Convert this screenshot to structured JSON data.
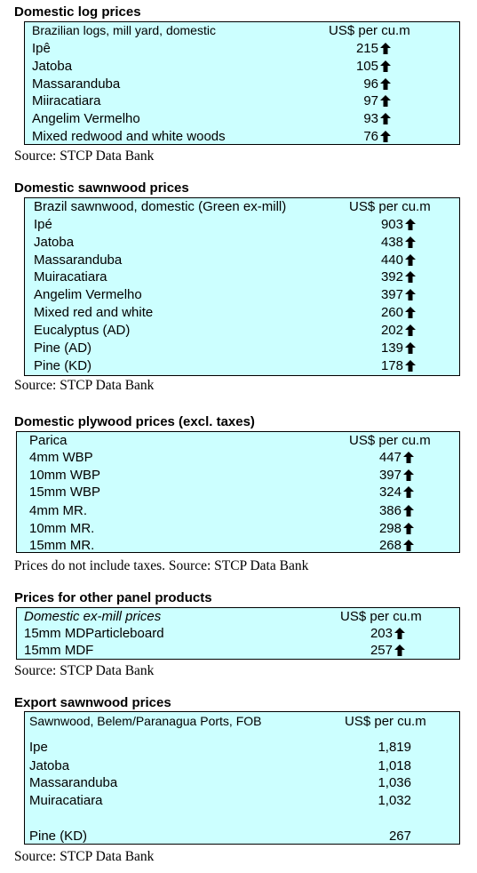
{
  "sections": [
    {
      "title": "Domestic log prices",
      "header": [
        "Brazilian logs, mill yard, domestic",
        "US$ per cu.m"
      ],
      "rows": [
        [
          "Ipê",
          "215"
        ],
        [
          "Jatoba",
          "105"
        ],
        [
          "Massaranduba",
          "96"
        ],
        [
          "Miiracatiara",
          "97"
        ],
        [
          "Angelim Vermelho",
          "93"
        ],
        [
          "Mixed redwood and white woods",
          "76"
        ]
      ],
      "source": "Source: STCP Data Bank"
    },
    {
      "title": "Domestic sawnwood prices",
      "header": [
        "Brazil sawnwood, domestic (Green ex-mill)",
        "US$ per cu.m"
      ],
      "rows": [
        [
          "Ipé",
          "903"
        ],
        [
          "Jatoba",
          "438"
        ],
        [
          "Massaranduba",
          "440"
        ],
        [
          "Muiracatiara",
          "392"
        ],
        [
          "Angelim Vermelho",
          "397"
        ],
        [
          "Mixed red and white",
          "260"
        ],
        [
          "Eucalyptus (AD)",
          "202"
        ],
        [
          "Pine (AD)",
          "139"
        ],
        [
          "Pine (KD)",
          "178"
        ]
      ],
      "source": "Source: STCP Data Bank"
    },
    {
      "title": "Domestic plywood prices (excl. taxes)",
      "header": [
        "Parica",
        "US$ per cu.m"
      ],
      "rows": [
        [
          "4mm WBP",
          "447"
        ],
        [
          "10mm WBP",
          "397"
        ],
        [
          "15mm WBP",
          "324"
        ],
        [
          "4mm MR.",
          "386"
        ],
        [
          "10mm MR.",
          "298"
        ],
        [
          "15mm MR.",
          "268"
        ]
      ],
      "source": "Prices do not include taxes. Source: STCP Data Bank"
    },
    {
      "title": "Prices for other panel products",
      "header": [
        "Domestic ex-mill prices",
        "US$ per cu.m"
      ],
      "rows": [
        [
          "15mm MDParticleboard",
          "203"
        ],
        [
          "15mm MDF",
          "257"
        ]
      ],
      "source": "Source: STCP Data Bank"
    },
    {
      "title": "Export sawnwood prices",
      "header": [
        "Sawnwood, Belem/Paranagua Ports, FOB",
        "US$ per cu.m"
      ],
      "rows": [
        [
          "Ipe",
          "1,819"
        ],
        [
          "Jatoba",
          "1,018"
        ],
        [
          "Massaranduba",
          "1,036"
        ],
        [
          "Muiracatiara",
          "1,032"
        ],
        [
          "Pine (KD)",
          "267"
        ]
      ],
      "source": "Source: STCP Data Bank"
    }
  ]
}
